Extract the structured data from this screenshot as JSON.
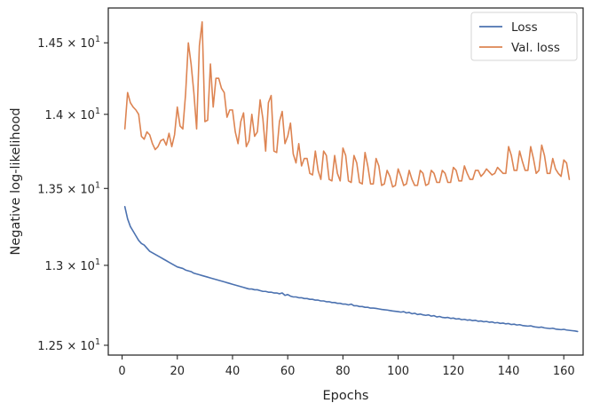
{
  "chart_data": {
    "type": "line",
    "xlabel": "Epochs",
    "ylabel": "Negative log-likelihood",
    "x_range": [
      1,
      161
    ],
    "xlim": [
      -5,
      167
    ],
    "ylim": [
      12.44,
      14.75
    ],
    "y_scale": "log",
    "x_ticks": [
      0,
      20,
      40,
      60,
      80,
      100,
      120,
      140,
      160
    ],
    "y_ticks": [
      {
        "value": 12.5,
        "mantissa": "1.25",
        "base": "10",
        "exp": "1"
      },
      {
        "value": 13.0,
        "mantissa": "1.3",
        "base": "10",
        "exp": "1"
      },
      {
        "value": 13.5,
        "mantissa": "1.35",
        "base": "10",
        "exp": "1"
      },
      {
        "value": 14.0,
        "mantissa": "1.4",
        "base": "10",
        "exp": "1"
      },
      {
        "value": 14.5,
        "mantissa": "1.45",
        "base": "10",
        "exp": "1"
      }
    ],
    "legend_position": "top-right",
    "series": [
      {
        "name": "Loss",
        "color": "#4c72b0",
        "y": [
          13.38,
          13.3,
          13.25,
          13.22,
          13.19,
          13.16,
          13.14,
          13.13,
          13.11,
          13.09,
          13.08,
          13.07,
          13.06,
          13.05,
          13.04,
          13.03,
          13.02,
          13.01,
          13.0,
          12.99,
          12.985,
          12.98,
          12.97,
          12.965,
          12.96,
          12.95,
          12.945,
          12.94,
          12.935,
          12.93,
          12.925,
          12.92,
          12.915,
          12.91,
          12.905,
          12.9,
          12.895,
          12.89,
          12.885,
          12.88,
          12.875,
          12.87,
          12.865,
          12.86,
          12.855,
          12.85,
          12.85,
          12.845,
          12.845,
          12.84,
          12.835,
          12.835,
          12.83,
          12.83,
          12.825,
          12.825,
          12.82,
          12.825,
          12.81,
          12.815,
          12.805,
          12.8,
          12.8,
          12.795,
          12.795,
          12.79,
          12.79,
          12.785,
          12.785,
          12.78,
          12.78,
          12.775,
          12.775,
          12.77,
          12.77,
          12.765,
          12.765,
          12.76,
          12.76,
          12.755,
          12.755,
          12.75,
          12.755,
          12.745,
          12.745,
          12.74,
          12.74,
          12.735,
          12.735,
          12.73,
          12.73,
          12.728,
          12.725,
          12.722,
          12.72,
          12.718,
          12.715,
          12.712,
          12.71,
          12.708,
          12.705,
          12.708,
          12.7,
          12.703,
          12.695,
          12.698,
          12.69,
          12.693,
          12.688,
          12.685,
          12.688,
          12.68,
          12.683,
          12.675,
          12.678,
          12.672,
          12.67,
          12.672,
          12.666,
          12.668,
          12.662,
          12.664,
          12.658,
          12.66,
          12.655,
          12.657,
          12.652,
          12.654,
          12.648,
          12.65,
          12.645,
          12.647,
          12.642,
          12.644,
          12.638,
          12.64,
          12.635,
          12.637,
          12.632,
          12.634,
          12.628,
          12.63,
          12.625,
          12.627,
          12.622,
          12.62,
          12.618,
          12.62,
          12.615,
          12.612,
          12.61,
          12.612,
          12.607,
          12.605,
          12.603,
          12.605,
          12.6,
          12.598,
          12.596,
          12.598,
          12.594,
          12.592,
          12.59,
          12.588,
          12.585
        ]
      },
      {
        "name": "Val. loss",
        "color": "#dd8452",
        "y": [
          13.9,
          14.15,
          14.08,
          14.05,
          14.03,
          14.0,
          13.85,
          13.83,
          13.88,
          13.86,
          13.8,
          13.76,
          13.78,
          13.82,
          13.83,
          13.79,
          13.87,
          13.78,
          13.86,
          14.05,
          13.92,
          13.9,
          14.14,
          14.5,
          14.35,
          14.15,
          13.9,
          14.48,
          14.65,
          13.95,
          13.96,
          14.35,
          14.05,
          14.25,
          14.25,
          14.18,
          14.15,
          13.98,
          14.03,
          14.03,
          13.88,
          13.8,
          13.95,
          14.01,
          13.78,
          13.82,
          14.0,
          13.85,
          13.88,
          14.1,
          13.97,
          13.75,
          14.08,
          14.13,
          13.75,
          13.74,
          13.95,
          14.02,
          13.8,
          13.85,
          13.94,
          13.73,
          13.67,
          13.8,
          13.65,
          13.7,
          13.7,
          13.6,
          13.59,
          13.75,
          13.62,
          13.56,
          13.75,
          13.72,
          13.56,
          13.55,
          13.72,
          13.6,
          13.55,
          13.77,
          13.72,
          13.55,
          13.54,
          13.72,
          13.67,
          13.54,
          13.53,
          13.74,
          13.65,
          13.53,
          13.53,
          13.7,
          13.65,
          13.52,
          13.53,
          13.62,
          13.58,
          13.51,
          13.52,
          13.63,
          13.58,
          13.52,
          13.53,
          13.62,
          13.56,
          13.52,
          13.52,
          13.62,
          13.6,
          13.52,
          13.53,
          13.62,
          13.6,
          13.54,
          13.54,
          13.62,
          13.6,
          13.54,
          13.54,
          13.64,
          13.62,
          13.55,
          13.55,
          13.65,
          13.6,
          13.56,
          13.56,
          13.62,
          13.62,
          13.58,
          13.6,
          13.63,
          13.61,
          13.59,
          13.6,
          13.64,
          13.62,
          13.6,
          13.6,
          13.78,
          13.72,
          13.62,
          13.62,
          13.75,
          13.68,
          13.62,
          13.62,
          13.78,
          13.7,
          13.6,
          13.62,
          13.79,
          13.72,
          13.6,
          13.6,
          13.7,
          13.63,
          13.6,
          13.58,
          13.69,
          13.67,
          13.56
        ]
      }
    ]
  }
}
